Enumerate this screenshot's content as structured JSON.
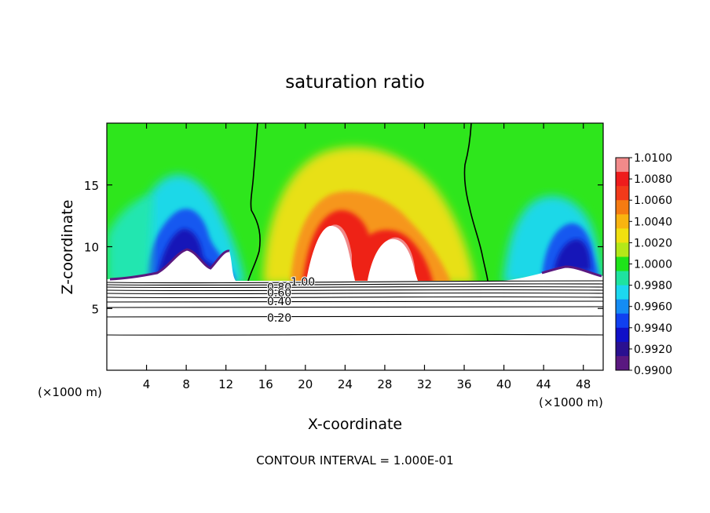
{
  "chart_data": {
    "type": "heatmap",
    "title": "saturation ratio",
    "xlabel": "X-coordinate",
    "ylabel": "Z-coordinate",
    "x_unit_left": "(×1000 m)",
    "x_unit_right": "(×1000 m)",
    "footer": "CONTOUR INTERVAL = 1.000E-01",
    "xlim": [
      0,
      50
    ],
    "ylim": [
      0,
      20
    ],
    "x_ticks": [
      4,
      8,
      12,
      16,
      20,
      24,
      28,
      32,
      36,
      40,
      44,
      48
    ],
    "y_ticks": [
      5,
      10,
      15
    ],
    "colorbar": {
      "labels": [
        "1.0100",
        "1.0080",
        "1.0060",
        "1.0040",
        "1.0020",
        "1.0000",
        "0.9980",
        "0.9960",
        "0.9940",
        "0.9920",
        "0.9900"
      ],
      "colors": [
        "#f28a8a",
        "#ee1c1c",
        "#f23a1a",
        "#f57b12",
        "#f8b410",
        "#f0e010",
        "#b4e818",
        "#1ee41a",
        "#1ee3a0",
        "#1cd8f0",
        "#148cf4",
        "#1040f0",
        "#1010c8",
        "#2a1090",
        "#5a1880"
      ]
    },
    "contour_labels": [
      {
        "text": "1.00"
      },
      {
        "text": "0.80"
      },
      {
        "text": "0.60"
      },
      {
        "text": "0.40"
      },
      {
        "text": "0.20"
      }
    ]
  }
}
